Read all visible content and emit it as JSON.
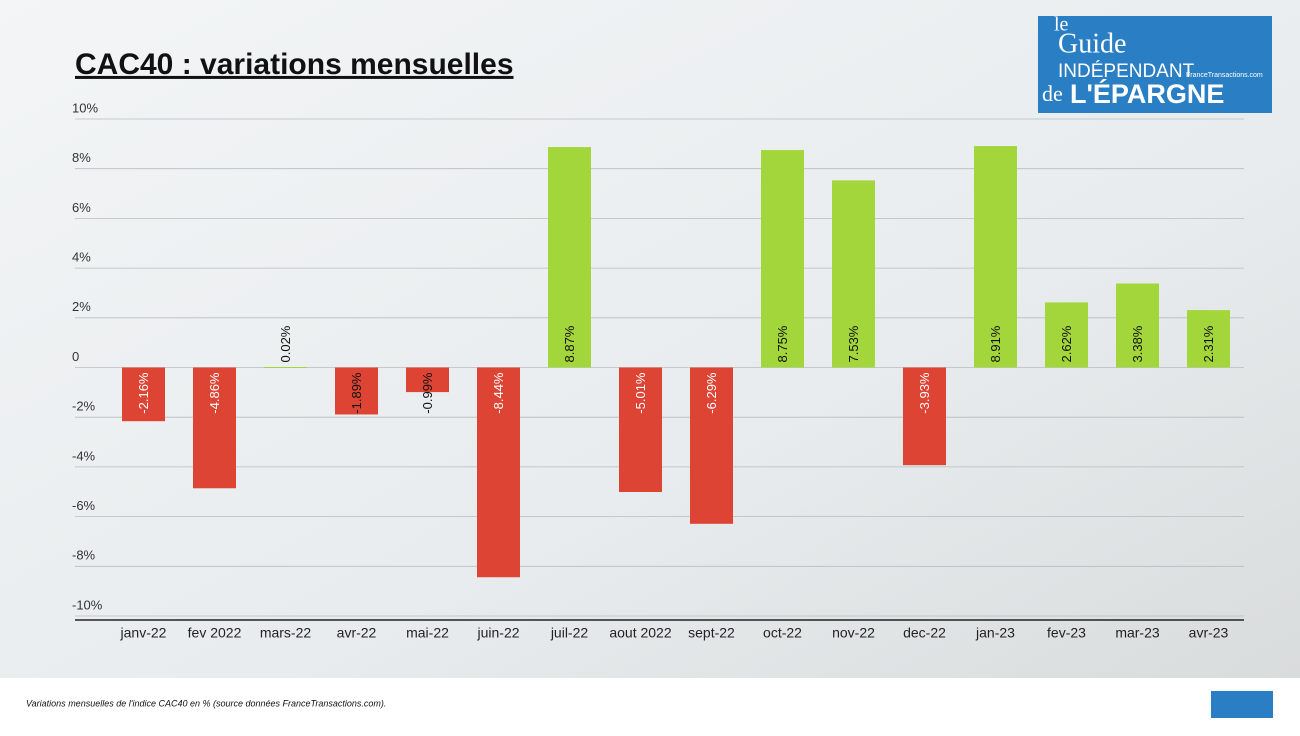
{
  "chart_data": {
    "type": "bar",
    "title": "CAC40 : variations mensuelles",
    "categories": [
      "janv-22",
      "fev 2022",
      "mars-22",
      "avr-22",
      "mai-22",
      "juin-22",
      "juil-22",
      "aout 2022",
      "sept-22",
      "oct-22",
      "nov-22",
      "dec-22",
      "jan-23",
      "fev-23",
      "mar-23",
      "avr-23"
    ],
    "values": [
      -2.16,
      -4.86,
      0.02,
      -1.89,
      -0.99,
      -8.44,
      8.87,
      -5.01,
      -6.29,
      8.75,
      7.53,
      -3.93,
      8.91,
      2.62,
      3.38,
      2.31
    ],
    "value_labels": [
      "-2.16%",
      "-4.86%",
      "0.02%",
      "-1.89%",
      "-0.99%",
      "-8.44%",
      "8.87%",
      "-5.01%",
      "-6.29%",
      "8.75%",
      "7.53%",
      "-3.93%",
      "8.91%",
      "2.62%",
      "3.38%",
      "2.31%"
    ],
    "positive_color": "#a3d63a",
    "negative_color": "#dd4433",
    "ylim": [
      -10,
      10
    ],
    "yticks": [
      {
        "value": 10,
        "label": "10%"
      },
      {
        "value": 8,
        "label": "8%"
      },
      {
        "value": 6,
        "label": "6%"
      },
      {
        "value": 4,
        "label": "4%"
      },
      {
        "value": 2,
        "label": "2%"
      },
      0,
      {
        "value": -2,
        "label": "-2%"
      },
      {
        "value": -4,
        "label": "-4%"
      },
      {
        "value": -6,
        "label": "-6%"
      },
      {
        "value": -8,
        "label": "-8%"
      },
      {
        "value": -10,
        "label": "-10%"
      }
    ],
    "grid": true
  },
  "logo": {
    "line1": "le",
    "line2": "Guide",
    "line3": "INDÉPENDANT",
    "line4": "de",
    "line5": "L'ÉPARGNE",
    "site": "FranceTransactions.com"
  },
  "caption": "Variations mensuelles de l'indice CAC40 en % (source données FranceTransactions.com)."
}
